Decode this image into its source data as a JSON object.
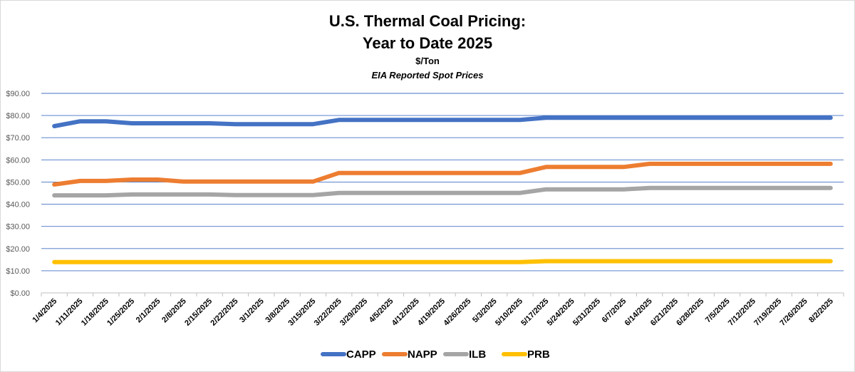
{
  "chart_data": {
    "type": "line",
    "title_line1": "U.S. Thermal Coal Pricing:",
    "title_line2": "Year to Date 2025",
    "subtitle": "$/Ton",
    "subtitle2": "EIA Reported Spot Prices",
    "ylim": [
      0,
      90
    ],
    "ytick_values": [
      0,
      10,
      20,
      30,
      40,
      50,
      60,
      70,
      80,
      90
    ],
    "ytick_labels": [
      "$0.00",
      "$10.00",
      "$20.00",
      "$30.00",
      "$40.00",
      "$50.00",
      "$60.00",
      "$70.00",
      "$80.00",
      "$90.00"
    ],
    "grid": "horizontal",
    "legend_position": "bottom",
    "x": [
      "1/4/2025",
      "1/11/2025",
      "1/18/2025",
      "1/25/2025",
      "2/1/2025",
      "2/8/2025",
      "2/15/2025",
      "2/22/2025",
      "3/1/2025",
      "3/8/2025",
      "3/15/2025",
      "3/22/2025",
      "3/29/2025",
      "4/5/2025",
      "4/12/2025",
      "4/19/2025",
      "4/26/2025",
      "5/3/2025",
      "5/10/2025",
      "5/17/2025",
      "5/24/2025",
      "5/31/2025",
      "6/7/2025",
      "6/14/2025",
      "6/21/2025",
      "6/28/2025",
      "7/5/2025",
      "7/12/2025",
      "7/19/2025",
      "7/26/2025",
      "8/2/2025"
    ],
    "series": [
      {
        "name": "CAPP",
        "color": "#4472c4",
        "values": [
          75.2,
          77.4,
          77.4,
          76.5,
          76.5,
          76.5,
          76.5,
          76.1,
          76.1,
          76.1,
          76.1,
          78.0,
          78.0,
          78.0,
          78.0,
          78.0,
          78.0,
          78.0,
          78.0,
          79.0,
          79.0,
          79.0,
          79.0,
          79.0,
          79.0,
          79.0,
          79.0,
          79.0,
          79.0,
          79.0,
          79.0
        ]
      },
      {
        "name": "NAPP",
        "color": "#ed7d31",
        "values": [
          48.9,
          50.5,
          50.5,
          51.1,
          51.1,
          50.2,
          50.2,
          50.2,
          50.2,
          50.2,
          50.2,
          54.1,
          54.1,
          54.1,
          54.1,
          54.1,
          54.1,
          54.1,
          54.1,
          56.8,
          56.8,
          56.8,
          56.8,
          58.2,
          58.2,
          58.2,
          58.2,
          58.2,
          58.2,
          58.2,
          58.2
        ]
      },
      {
        "name": "ILB",
        "color": "#a5a5a5",
        "values": [
          44.0,
          44.0,
          44.0,
          44.4,
          44.4,
          44.4,
          44.4,
          44.1,
          44.1,
          44.1,
          44.1,
          45.1,
          45.1,
          45.1,
          45.1,
          45.1,
          45.1,
          45.1,
          45.1,
          46.7,
          46.7,
          46.7,
          46.7,
          47.3,
          47.3,
          47.3,
          47.3,
          47.3,
          47.3,
          47.3,
          47.3
        ]
      },
      {
        "name": "PRB",
        "color": "#ffc000",
        "values": [
          13.9,
          13.9,
          13.9,
          13.9,
          13.9,
          13.9,
          13.9,
          13.9,
          13.9,
          13.9,
          13.9,
          13.9,
          13.9,
          13.9,
          13.9,
          13.9,
          13.9,
          13.9,
          13.9,
          14.3,
          14.3,
          14.3,
          14.3,
          14.3,
          14.3,
          14.3,
          14.3,
          14.3,
          14.3,
          14.3,
          14.3
        ]
      }
    ]
  }
}
